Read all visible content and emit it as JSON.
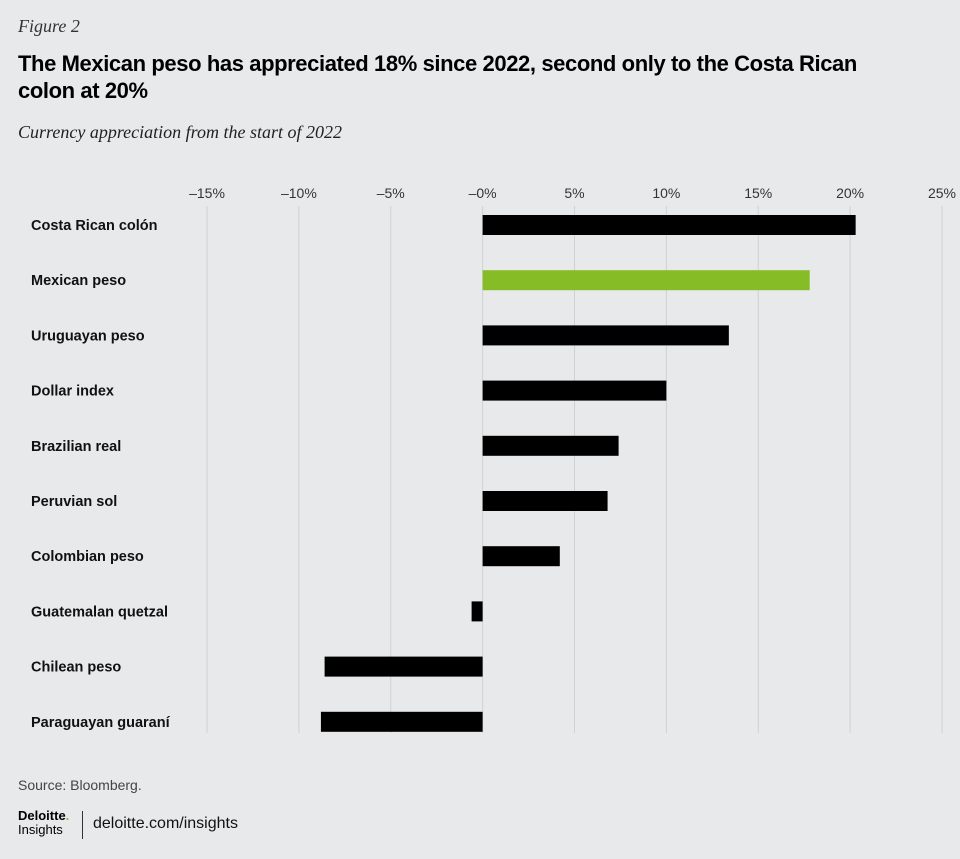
{
  "header": {
    "figure_label": "Figure 2",
    "title": "The Mexican peso has appreciated 18% since 2022, second only to the Costa Rican colon at 20%",
    "subtitle": "Currency appreciation from the start of 2022"
  },
  "footer": {
    "source": "Source: Bloomberg.",
    "logo_name": "Deloitte",
    "logo_dot": ".",
    "logo_sub": "Insights",
    "site": "deloitte.com/insights"
  },
  "colors": {
    "bar_default": "#000000",
    "bar_highlight": "#86bc25",
    "grid": "#cfd1d3",
    "background": "#e8e9ea"
  },
  "chart_data": {
    "type": "bar",
    "orientation": "horizontal",
    "title": "The Mexican peso has appreciated 18% since 2022, second only to the Costa Rican colon at 20%",
    "subtitle": "Currency appreciation from the start of 2022",
    "categories": [
      "Costa Rican colón",
      "Mexican peso",
      "Uruguayan peso",
      "Dollar index",
      "Brazilian real",
      "Peruvian sol",
      "Colombian peso",
      "Guatemalan quetzal",
      "Chilean peso",
      "Paraguayan guaraní"
    ],
    "values": [
      20.3,
      17.8,
      13.4,
      10.0,
      7.4,
      6.8,
      4.2,
      -0.6,
      -8.6,
      -8.8
    ],
    "highlight": "Mexican peso",
    "xlim": [
      -15,
      25
    ],
    "xticks": [
      -15,
      -10,
      -5,
      0,
      5,
      10,
      15,
      20,
      25
    ],
    "xtick_labels": [
      "–15%",
      "–10%",
      "–5%",
      "–0%",
      "5%",
      "10%",
      "15%",
      "20%",
      "25%"
    ],
    "xlabel": "",
    "ylabel": "",
    "grid": true,
    "axis_position": "top"
  }
}
